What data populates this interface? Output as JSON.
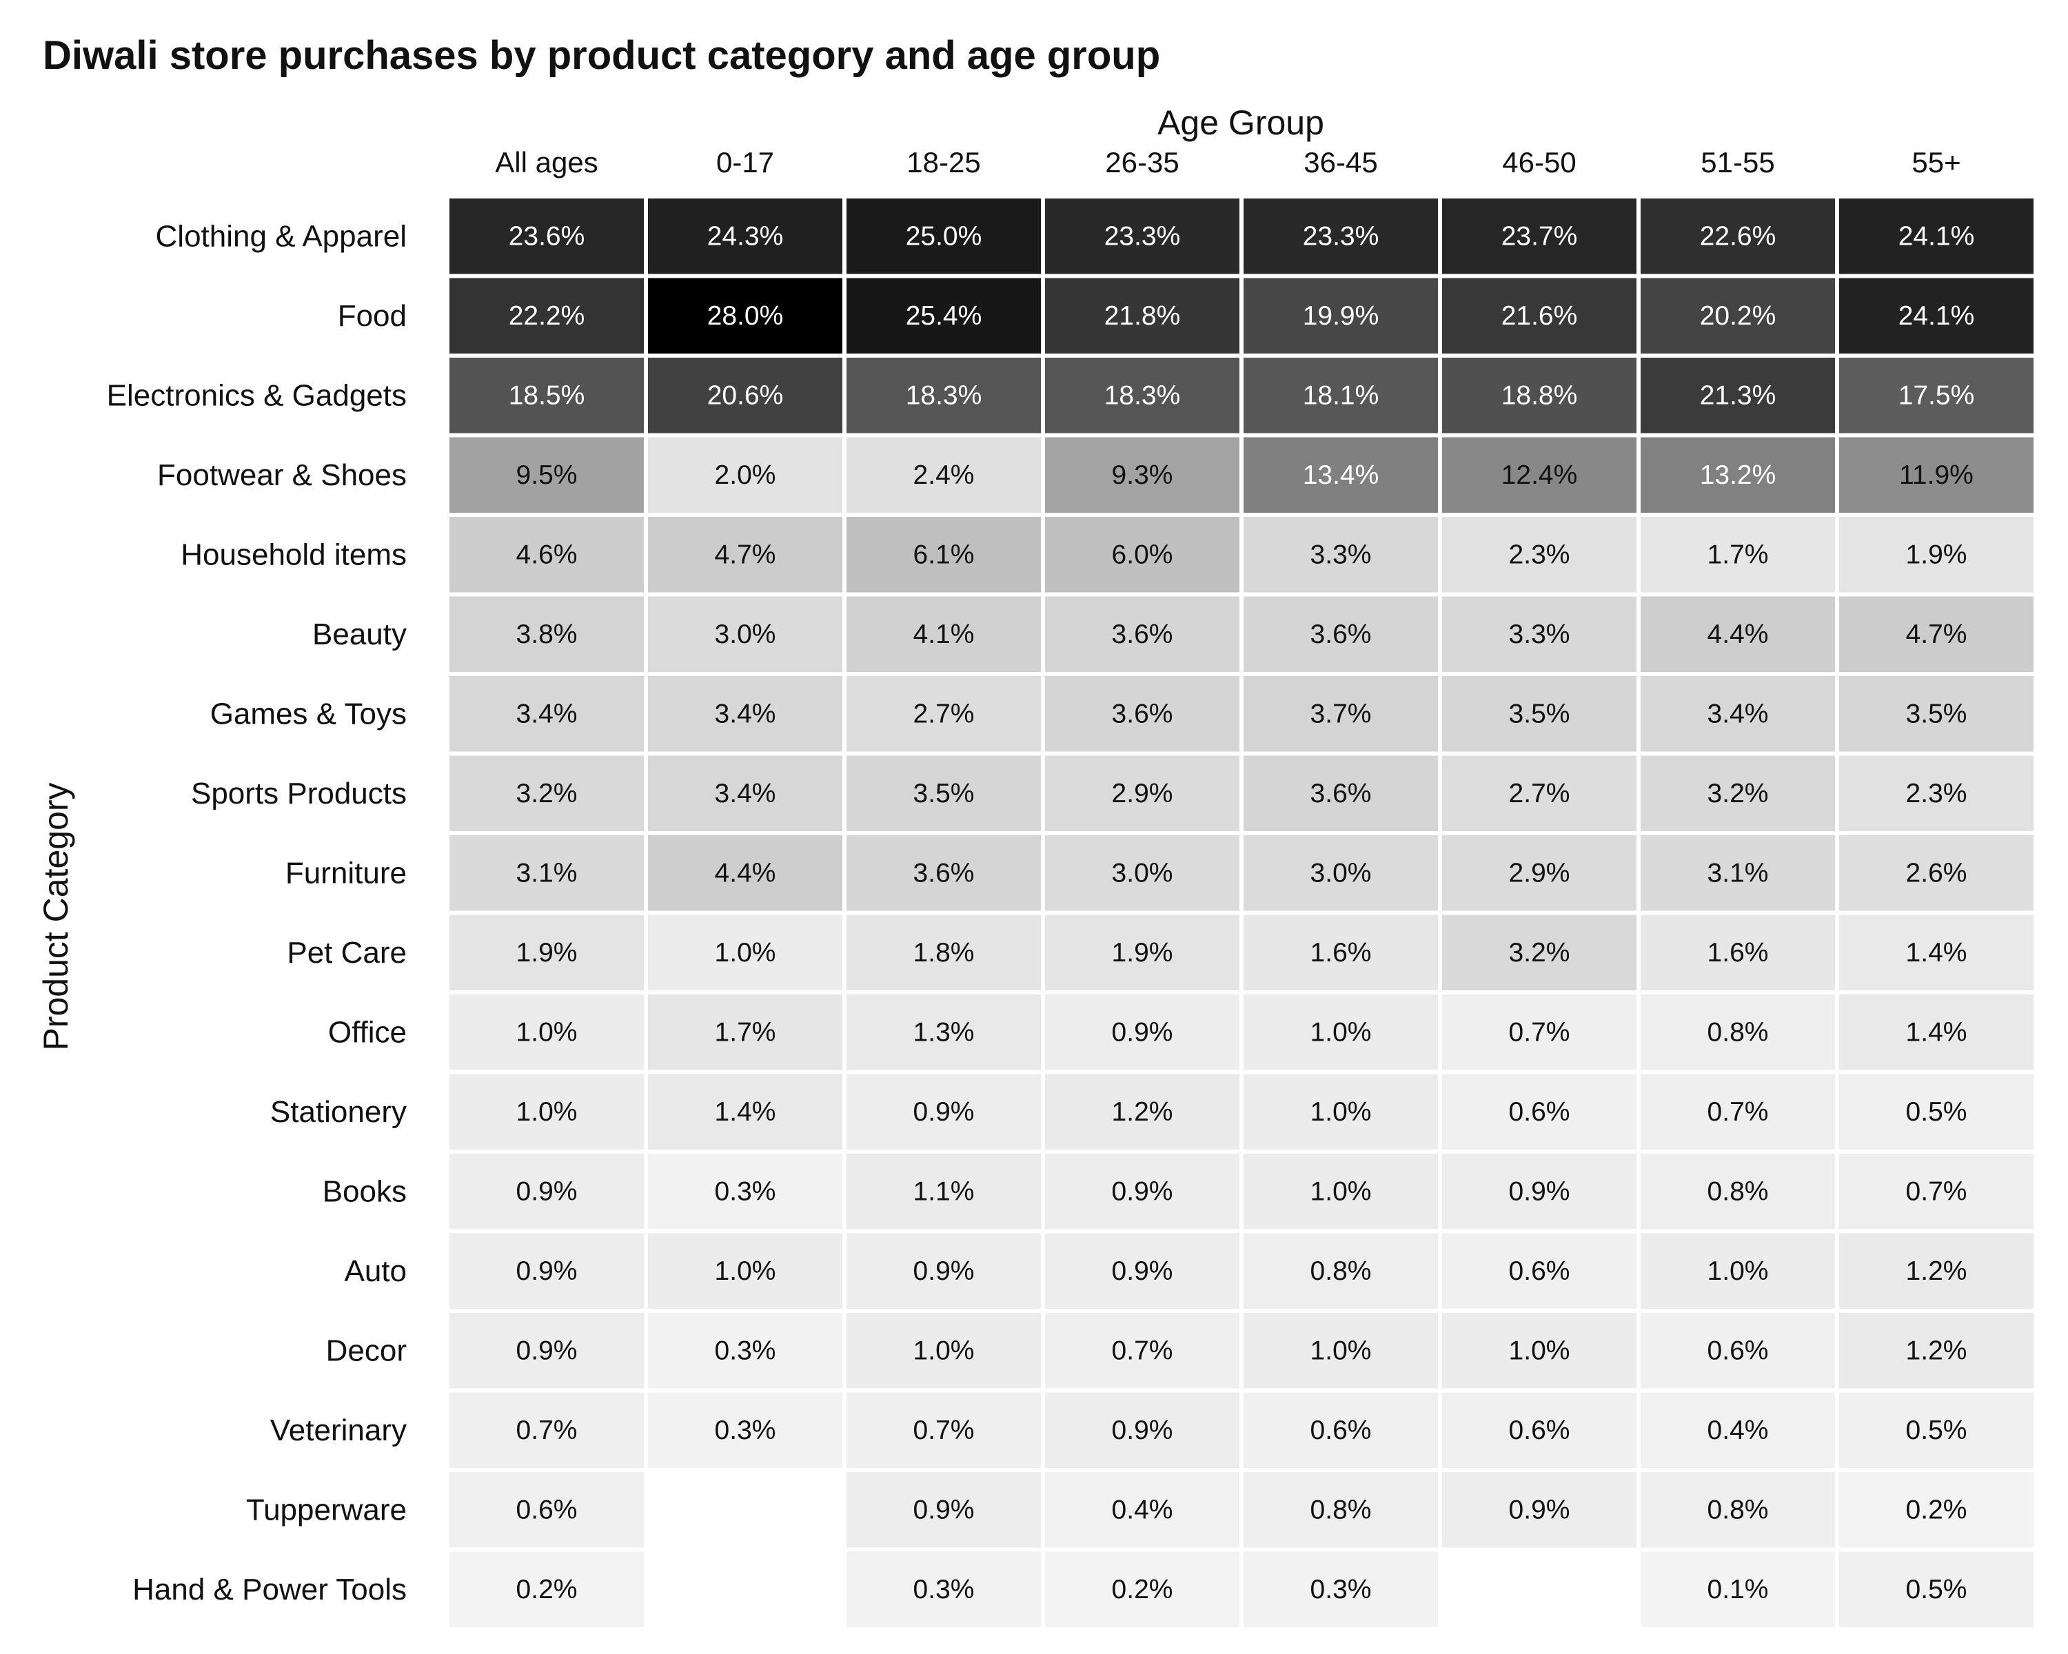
{
  "chart_data": {
    "type": "heatmap",
    "title": "Diwali store purchases by product category and age group",
    "xlabel": "Age Group",
    "ylabel": "Product Category",
    "columns": [
      "All ages",
      "0-17",
      "18-25",
      "26-35",
      "36-45",
      "46-50",
      "51-55",
      "55+"
    ],
    "rows": [
      "Clothing & Apparel",
      "Food",
      "Electronics & Gadgets",
      "Footwear & Shoes",
      "Household items",
      "Beauty",
      "Games & Toys",
      "Sports Products",
      "Furniture",
      "Pet Care",
      "Office",
      "Stationery",
      "Books",
      "Auto",
      "Decor",
      "Veterinary",
      "Tupperware",
      "Hand & Power Tools"
    ],
    "values": [
      [
        23.6,
        24.3,
        25.0,
        23.3,
        23.3,
        23.7,
        22.6,
        24.1
      ],
      [
        22.2,
        28.0,
        25.4,
        21.8,
        19.9,
        21.6,
        20.2,
        24.1
      ],
      [
        18.5,
        20.6,
        18.3,
        18.3,
        18.1,
        18.8,
        21.3,
        17.5
      ],
      [
        9.5,
        2.0,
        2.4,
        9.3,
        13.4,
        12.4,
        13.2,
        11.9
      ],
      [
        4.6,
        4.7,
        6.1,
        6.0,
        3.3,
        2.3,
        1.7,
        1.9
      ],
      [
        3.8,
        3.0,
        4.1,
        3.6,
        3.6,
        3.3,
        4.4,
        4.7
      ],
      [
        3.4,
        3.4,
        2.7,
        3.6,
        3.7,
        3.5,
        3.4,
        3.5
      ],
      [
        3.2,
        3.4,
        3.5,
        2.9,
        3.6,
        2.7,
        3.2,
        2.3
      ],
      [
        3.1,
        4.4,
        3.6,
        3.0,
        3.0,
        2.9,
        3.1,
        2.6
      ],
      [
        1.9,
        1.0,
        1.8,
        1.9,
        1.6,
        3.2,
        1.6,
        1.4
      ],
      [
        1.0,
        1.7,
        1.3,
        0.9,
        1.0,
        0.7,
        0.8,
        1.4
      ],
      [
        1.0,
        1.4,
        0.9,
        1.2,
        1.0,
        0.6,
        0.7,
        0.5
      ],
      [
        0.9,
        0.3,
        1.1,
        0.9,
        1.0,
        0.9,
        0.8,
        0.7
      ],
      [
        0.9,
        1.0,
        0.9,
        0.9,
        0.8,
        0.6,
        1.0,
        1.2
      ],
      [
        0.9,
        0.3,
        1.0,
        0.7,
        1.0,
        1.0,
        0.6,
        1.2
      ],
      [
        0.7,
        0.3,
        0.7,
        0.9,
        0.6,
        0.6,
        0.4,
        0.5
      ],
      [
        0.6,
        null,
        0.9,
        0.4,
        0.8,
        0.9,
        0.8,
        0.2
      ],
      [
        0.2,
        null,
        0.3,
        0.2,
        0.3,
        null,
        0.1,
        0.5
      ]
    ],
    "value_suffix": "%",
    "color_scale": {
      "low": "#ffffff",
      "high": "#000000"
    },
    "legend": "none",
    "grid": false
  }
}
